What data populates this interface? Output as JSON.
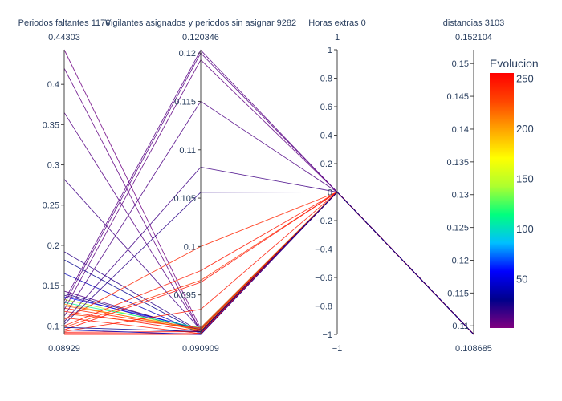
{
  "chart_data": {
    "type": "parallel_coordinates",
    "color_dimension": {
      "title": "Evolucion",
      "colorscale": [
        "#800080",
        "#00008b",
        "#0000ff",
        "#00bfff",
        "#00ff7f",
        "#adff2f",
        "#ffff00",
        "#ffa500",
        "#ff4500",
        "#ff0000"
      ],
      "range": [
        1,
        255
      ],
      "ticks": [
        "50",
        "100",
        "150",
        "200",
        "250"
      ],
      "tick_values": [
        50,
        100,
        150,
        200,
        250
      ]
    },
    "dimensions": [
      {
        "label": "Periodos faltantes 1176",
        "range": [
          0.08929,
          0.44303
        ],
        "range_labels": {
          "min": "0.08929",
          "max": "0.44303"
        },
        "ticks": [
          "0.1",
          "0.15",
          "0.2",
          "0.25",
          "0.3",
          "0.35",
          "0.4"
        ],
        "tick_values": [
          0.1,
          0.15,
          0.2,
          0.25,
          0.3,
          0.35,
          0.4
        ]
      },
      {
        "label": "Vigilantes asignados y periodos sin asignar 9282",
        "range": [
          0.090909,
          0.120346
        ],
        "range_labels": {
          "min": "0.090909",
          "max": "0.120346"
        },
        "ticks": [
          "0.095",
          "0.1",
          "0.105",
          "0.11",
          "0.115",
          "0.12"
        ],
        "tick_values": [
          0.095,
          0.1,
          0.105,
          0.11,
          0.115,
          0.12
        ]
      },
      {
        "label": "Horas extras 0",
        "range": [
          -1,
          1
        ],
        "range_labels": {
          "min": "−1",
          "max": "1"
        },
        "ticks": [
          "−1",
          "−0.8",
          "−0.6",
          "−0.4",
          "−0.2",
          "0",
          "0.2",
          "0.4",
          "0.6",
          "0.8",
          "1"
        ],
        "tick_values": [
          -1,
          -0.8,
          -0.6,
          -0.4,
          -0.2,
          0,
          0.2,
          0.4,
          0.6,
          0.8,
          1
        ]
      },
      {
        "label": "distancias 3103",
        "range": [
          0.108685,
          0.152104
        ],
        "range_labels": {
          "min": "0.108685",
          "max": "0.152104"
        },
        "ticks": [
          "0.11",
          "0.115",
          "0.12",
          "0.125",
          "0.13",
          "0.135",
          "0.14",
          "0.145",
          "0.15"
        ],
        "tick_values": [
          0.11,
          0.115,
          0.12,
          0.125,
          0.13,
          0.135,
          0.14,
          0.145,
          0.15
        ]
      }
    ],
    "lines": [
      {
        "values": [
          0.44303,
          0.0915,
          0,
          0.1087
        ],
        "color_value": 5
      },
      {
        "values": [
          0.42,
          0.0912,
          0,
          0.1087
        ],
        "color_value": 8
      },
      {
        "values": [
          0.365,
          0.0913,
          0,
          0.1087
        ],
        "color_value": 10
      },
      {
        "values": [
          0.282,
          0.0914,
          0,
          0.1087
        ],
        "color_value": 15
      },
      {
        "values": [
          0.192,
          0.0912,
          0,
          0.1087
        ],
        "color_value": 20
      },
      {
        "values": [
          0.182,
          0.0911,
          0,
          0.1087
        ],
        "color_value": 30
      },
      {
        "values": [
          0.165,
          0.091,
          0,
          0.1087
        ],
        "color_value": 40
      },
      {
        "values": [
          0.143,
          0.0913,
          0,
          0.1087
        ],
        "color_value": 12
      },
      {
        "values": [
          0.14,
          0.0914,
          0,
          0.1087
        ],
        "color_value": 25
      },
      {
        "values": [
          0.138,
          0.0912,
          0,
          0.1087
        ],
        "color_value": 18
      },
      {
        "values": [
          0.136,
          0.0915,
          0,
          0.1087
        ],
        "color_value": 60
      },
      {
        "values": [
          0.133,
          0.0913,
          0,
          0.1087
        ],
        "color_value": 150
      },
      {
        "values": [
          0.129,
          0.0916,
          0,
          0.1087
        ],
        "color_value": 110
      },
      {
        "values": [
          0.127,
          0.0913,
          0,
          0.1087
        ],
        "color_value": 200
      },
      {
        "values": [
          0.125,
          0.0915,
          0,
          0.1087
        ],
        "color_value": 220
      },
      {
        "values": [
          0.122,
          0.0914,
          0,
          0.1087
        ],
        "color_value": 240
      },
      {
        "values": [
          0.118,
          0.0912,
          0,
          0.1087
        ],
        "color_value": 250
      },
      {
        "values": [
          0.115,
          0.0916,
          0,
          0.1087
        ],
        "color_value": 230
      },
      {
        "values": [
          0.131,
          0.1203,
          0,
          0.1087
        ],
        "color_value": 10
      },
      {
        "values": [
          0.127,
          0.12,
          0,
          0.1087
        ],
        "color_value": 10
      },
      {
        "values": [
          0.12,
          0.1193,
          0,
          0.1087
        ],
        "color_value": 8
      },
      {
        "values": [
          0.112,
          0.115,
          0,
          0.1087
        ],
        "color_value": 12
      },
      {
        "values": [
          0.105,
          0.1082,
          0,
          0.1087
        ],
        "color_value": 15
      },
      {
        "values": [
          0.102,
          0.1056,
          0,
          0.1087
        ],
        "color_value": 20
      },
      {
        "values": [
          0.108,
          0.1,
          0,
          0.1087
        ],
        "color_value": 240
      },
      {
        "values": [
          0.1,
          0.0975,
          0,
          0.1087
        ],
        "color_value": 245
      },
      {
        "values": [
          0.098,
          0.0965,
          0,
          0.1087
        ],
        "color_value": 235
      },
      {
        "values": [
          0.095,
          0.0963,
          0,
          0.1087
        ],
        "color_value": 250
      },
      {
        "values": [
          0.093,
          0.0935,
          0,
          0.1087
        ],
        "color_value": 245
      },
      {
        "values": [
          0.092,
          0.0912,
          0,
          0.1087
        ],
        "color_value": 252
      },
      {
        "values": [
          0.0905,
          0.091,
          0,
          0.1087
        ],
        "color_value": 250
      },
      {
        "values": [
          0.0893,
          0.0909,
          0,
          0.1087
        ],
        "color_value": 248
      },
      {
        "values": [
          0.11,
          0.091,
          0,
          0.1087
        ],
        "color_value": 245
      },
      {
        "values": [
          0.095,
          0.0909,
          0,
          0.1087
        ],
        "color_value": 40
      },
      {
        "values": [
          0.098,
          0.0912,
          0,
          0.1087
        ],
        "color_value": 30
      }
    ]
  }
}
